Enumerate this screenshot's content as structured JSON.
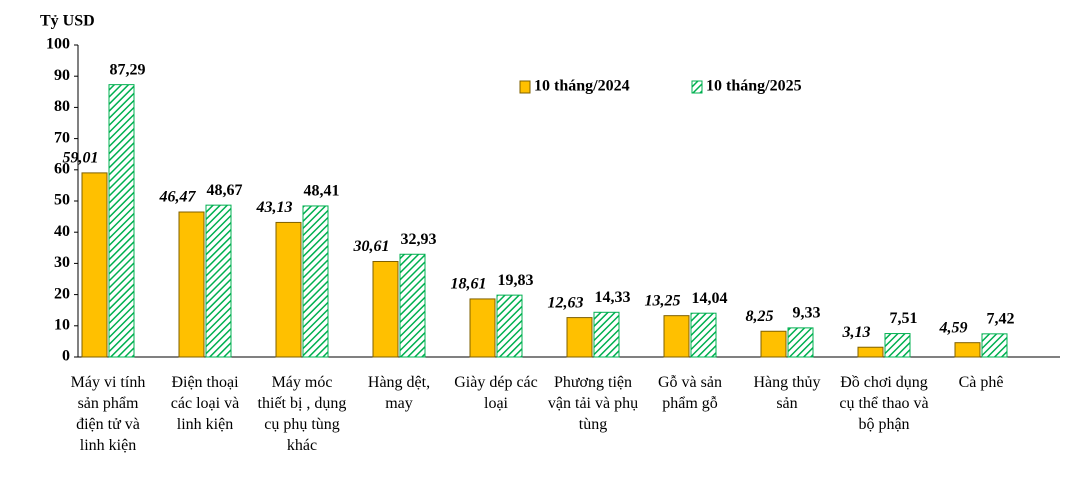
{
  "chart_data": {
    "type": "bar",
    "y_label": "Tỷ USD",
    "categories": [
      "Máy vi tính sản phẩm điện tử và linh kiện",
      "Điện thoại các loại và linh kiện",
      "Máy móc thiết bị , dụng cụ phụ tùng khác",
      "Hàng dệt, may",
      "Giày dép các loại",
      "Phương tiện vận tải và phụ tùng",
      "Gỗ và sản phẩm gỗ",
      "Hàng thủy sản",
      "Đồ chơi dụng cụ thể thao và bộ phận",
      "Cà phê"
    ],
    "series": [
      {
        "name": "10 tháng/2024",
        "color": "#ffc000",
        "values": [
          59.01,
          46.47,
          43.13,
          30.61,
          18.61,
          12.63,
          13.25,
          8.25,
          3.13,
          4.59
        ],
        "value_labels": [
          "59,01",
          "46,47",
          "43,13",
          "30,61",
          "18,61",
          "12,63",
          "13,25",
          "8,25",
          "3,13",
          "4,59"
        ]
      },
      {
        "name": "10 tháng/2025",
        "color": "#00b050",
        "values": [
          87.29,
          48.67,
          48.41,
          32.93,
          19.83,
          14.33,
          14.04,
          9.33,
          7.51,
          7.42
        ],
        "value_labels": [
          "87,29",
          "48,67",
          "48,41",
          "32,93",
          "19,83",
          "14,33",
          "14,04",
          "9,33",
          "7,51",
          "7,42"
        ]
      }
    ],
    "ylim": [
      0,
      100
    ],
    "yticks": [
      0,
      10,
      20,
      30,
      40,
      50,
      60,
      70,
      80,
      90,
      100
    ],
    "grid": false,
    "legend": "top-right"
  }
}
